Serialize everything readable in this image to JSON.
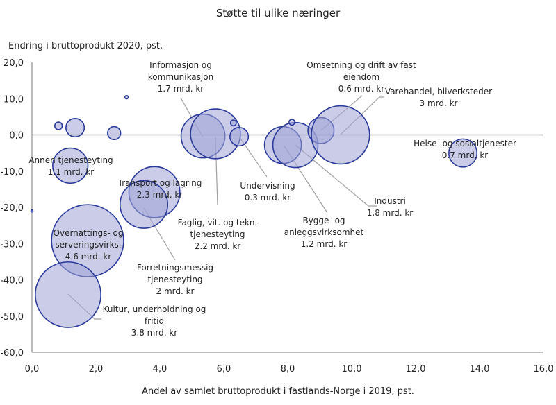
{
  "chart_data": {
    "type": "scatter",
    "subtype": "bubble",
    "title": "Støtte til ulike næringer",
    "ylabel": "Endring i bruttoprodukt 2020, pst.",
    "xlabel": "Andel av samlet bruttoprodukt i fastlands-Norge i 2019, pst.",
    "xlim": [
      0,
      16
    ],
    "ylim": [
      -60,
      20
    ],
    "xticks": [
      "0,0",
      "2,0",
      "4,0",
      "6,0",
      "8,0",
      "10,0",
      "12,0",
      "14,0",
      "16,0"
    ],
    "yticks": [
      "20,0",
      "10,0",
      "0,0",
      "-10,0",
      "-20,0",
      "-30,0",
      "-40,0",
      "-50,0",
      "-60,0"
    ],
    "grid": false,
    "legend": "none",
    "colors": {
      "fill": "#9ea2d6",
      "stroke": "#2a3a9a",
      "leader": "#a0a0a0",
      "axis": "#a6a6a6"
    },
    "bubble_size_unit": "mrd. kr",
    "points": [
      {
        "name": "Annen tjenesteyting",
        "x": 1.2,
        "y": -8.5,
        "support": 1.1,
        "label": [
          "Annen tjenesteyting",
          "1.1 mrd. kr"
        ]
      },
      {
        "name": "Transport og lagring",
        "x": 3.83,
        "y": -15.8,
        "support": 2.3,
        "label": [
          "Transport og lagring",
          "2.3 mrd. kr"
        ]
      },
      {
        "name": "Forretningsmessig tjenesteyting",
        "x": 3.5,
        "y": -19.2,
        "support": 2.0,
        "label": [
          "Forretningsmessig",
          "tjenesteyting",
          "2 mrd. kr"
        ]
      },
      {
        "name": "Overnattings- og serveringsvirks.",
        "x": 1.74,
        "y": -29.2,
        "support": 4.6,
        "label": [
          "Overnattings- og",
          "serveringsvirks.",
          "4.6 mrd. kr"
        ]
      },
      {
        "name": "Kultur, underholdning og fritid",
        "x": 1.13,
        "y": -44.1,
        "support": 3.8,
        "label": [
          "Kultur, underholdning og",
          "fritid",
          "3.8 mrd. kr"
        ]
      },
      {
        "name": "Informasjon og kommunikasjon",
        "x": 5.35,
        "y": -0.3,
        "support": 1.7,
        "label": [
          "Informasjon og",
          "kommunikasjon",
          "1.7 mrd. kr"
        ]
      },
      {
        "name": "Faglig, vit. og tekn. tjenesteyting",
        "x": 5.74,
        "y": 0.3,
        "support": 2.2,
        "label": [
          "Faglig, vit. og tekn.",
          "tjenesteyting",
          "2.2 mrd. kr"
        ]
      },
      {
        "name": "Undervisning",
        "x": 6.48,
        "y": -0.5,
        "support": 0.3,
        "label": [
          "Undervisning",
          "0.3 mrd. kr"
        ]
      },
      {
        "name": "Bygge- og anleggsvirksomhet",
        "x": 7.85,
        "y": -2.8,
        "support": 1.2,
        "label": [
          "Bygge- og",
          "anleggsvirksomhet",
          "1.2 mrd. kr"
        ]
      },
      {
        "name": "Industri",
        "x": 8.24,
        "y": -2.8,
        "support": 1.8,
        "label": [
          "Industri",
          "1.8 mrd. kr"
        ]
      },
      {
        "name": "Omsetning og drift av fast eiendom",
        "x": 9.04,
        "y": 1.2,
        "support": 0.6,
        "label": [
          "Omsetning og drift av fast",
          "eiendom",
          "0.6 mrd. kr"
        ]
      },
      {
        "name": "Varehandel, bilverksteder",
        "x": 9.65,
        "y": 0.0,
        "support": 3.0,
        "label": [
          "Varehandel, bilverksteder",
          "3 mrd. kr"
        ]
      },
      {
        "name": "Helse- og sosialtjenester",
        "x": 13.48,
        "y": -5.0,
        "support": 0.7,
        "label": [
          "Helse- og sosialtjenester",
          "0.7 mrd. kr"
        ]
      },
      {
        "name": "unlabeled-1",
        "x": 0.83,
        "y": 2.5,
        "support": 0.05,
        "label": []
      },
      {
        "name": "unlabeled-2",
        "x": 1.35,
        "y": 2.0,
        "support": 0.3,
        "label": []
      },
      {
        "name": "unlabeled-3",
        "x": 2.96,
        "y": 10.4,
        "support": 0.01,
        "label": []
      },
      {
        "name": "unlabeled-4",
        "x": 2.57,
        "y": 0.5,
        "support": 0.15,
        "label": []
      },
      {
        "name": "unlabeled-5",
        "x": 6.3,
        "y": 3.3,
        "support": 0.03,
        "label": []
      },
      {
        "name": "unlabeled-6",
        "x": 8.13,
        "y": 3.5,
        "support": 0.03,
        "label": []
      },
      {
        "name": "unlabeled-7",
        "x": 0.0,
        "y": -21.0,
        "support": 0.001,
        "label": []
      }
    ]
  }
}
